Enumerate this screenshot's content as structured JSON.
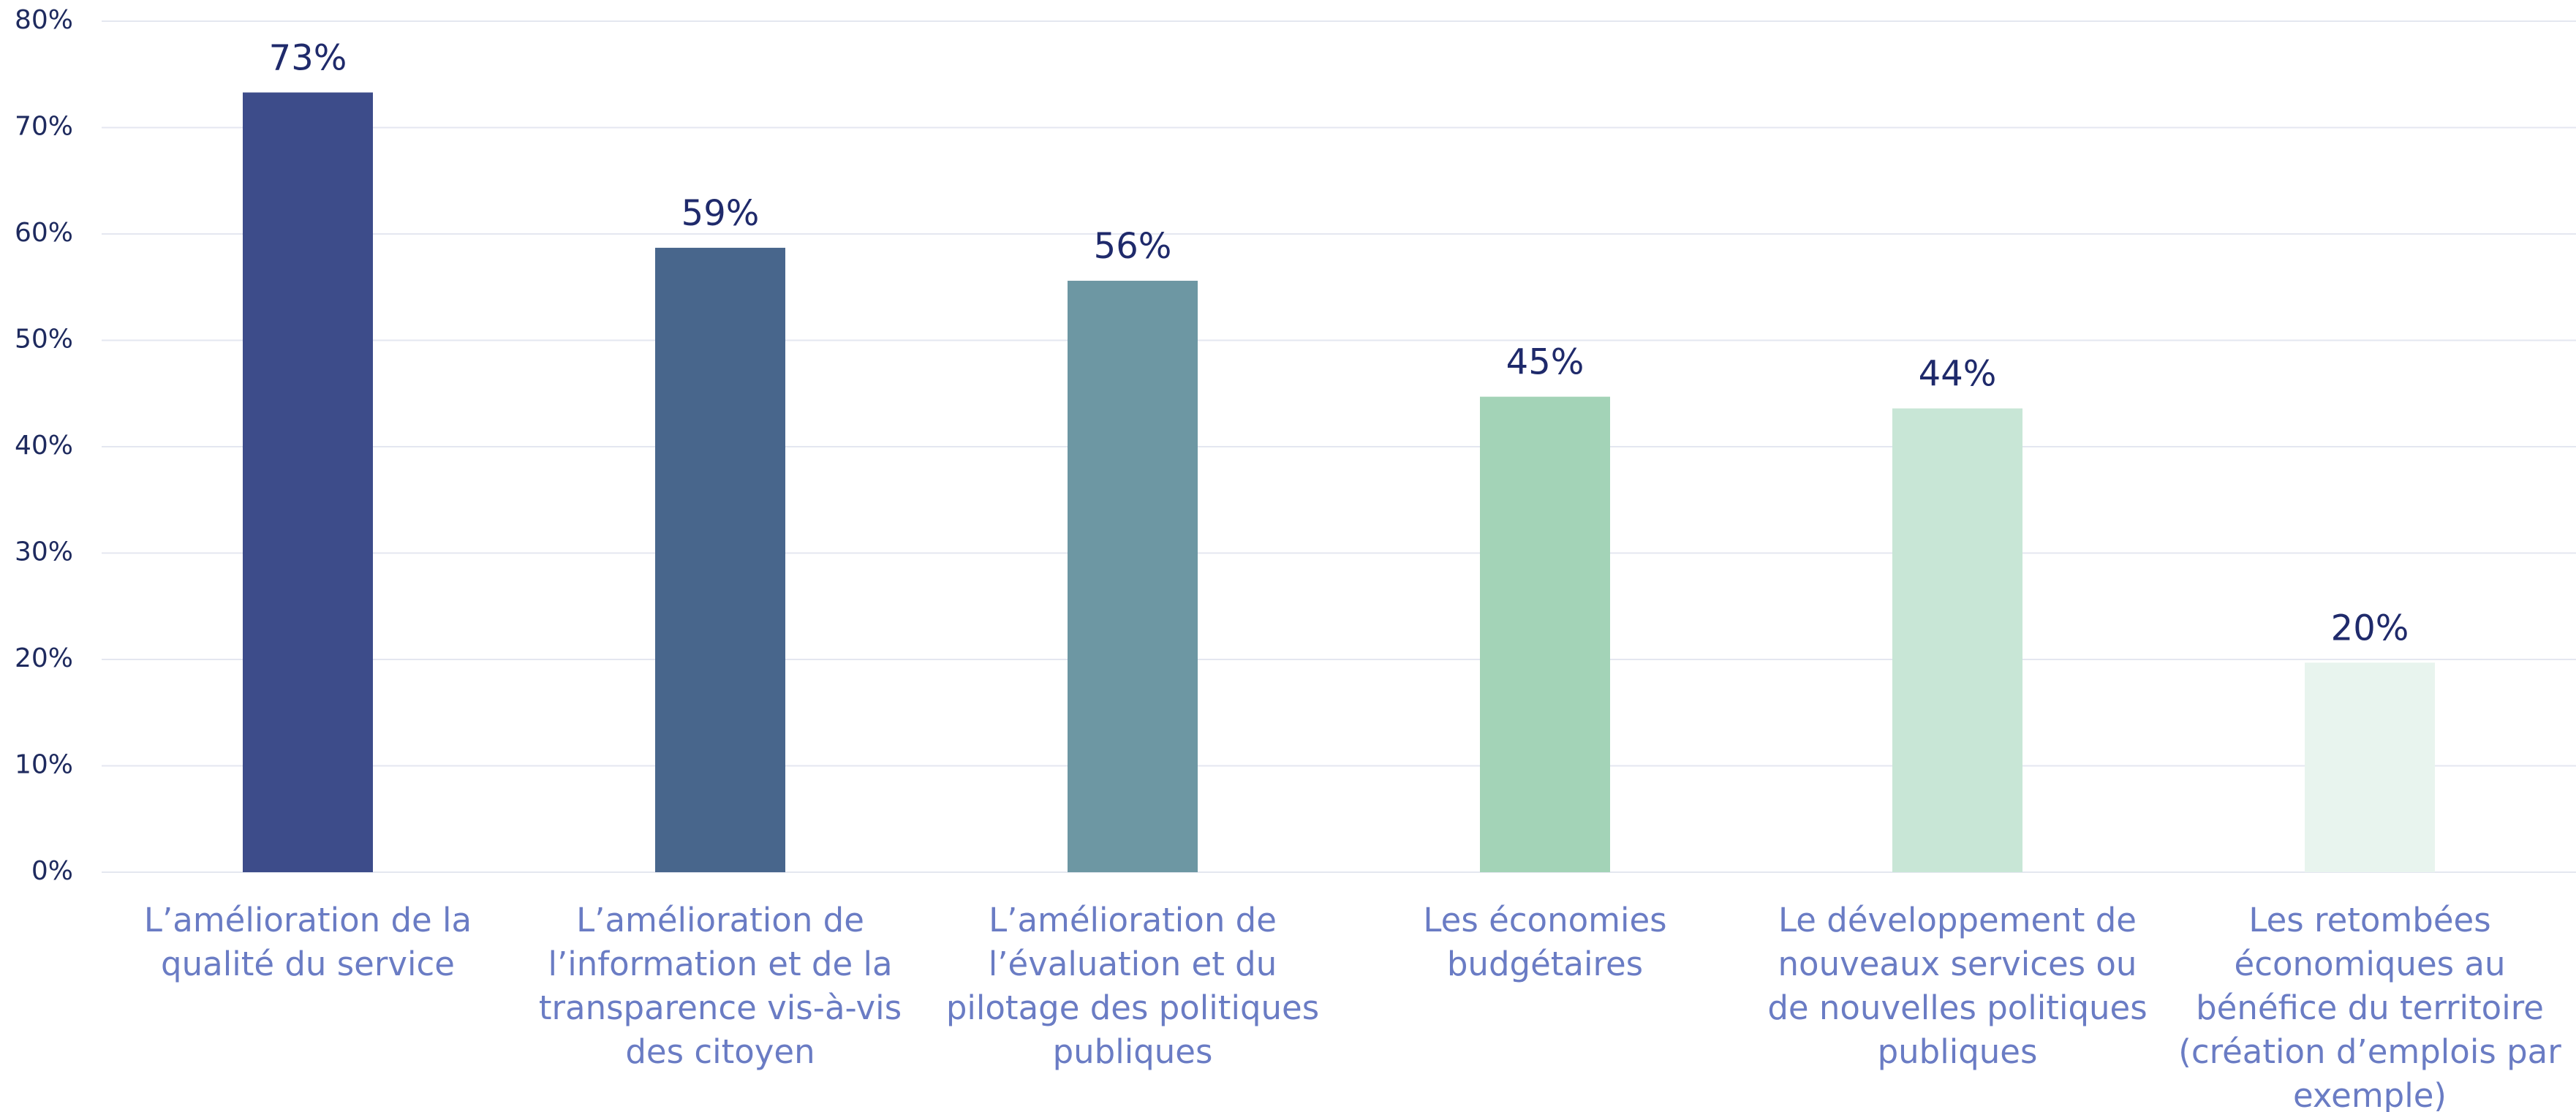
{
  "chart_data": {
    "type": "bar",
    "categories": [
      "L’amélioration de la qualité du service",
      "L’amélioration de l’information et de la transparence vis-à-vis des citoyen",
      "L’amélioration de l’évaluation et du pilotage des politiques publiques",
      "Les économies budgétaires",
      "Le développement de nouveaux services ou de nouvelles politiques publiques",
      "Les retombées économiques au bénéfice du territoire (création d’emplois par exemple)"
    ],
    "values": [
      73.3,
      58.7,
      55.6,
      44.7,
      43.6,
      19.7
    ],
    "value_labels": [
      "73%",
      "59%",
      "56%",
      "45%",
      "44%",
      "20%"
    ],
    "colors": [
      "#3d4c8a",
      "#48668c",
      "#6d97a3",
      "#a3d3b7",
      "#c8e6d6",
      "#e8f4ee"
    ],
    "ylim": [
      0,
      80
    ],
    "yticks": [
      {
        "value": 0,
        "label": "0%"
      },
      {
        "value": 10,
        "label": "10%"
      },
      {
        "value": 20,
        "label": "20%"
      },
      {
        "value": 30,
        "label": "30%"
      },
      {
        "value": 40,
        "label": "40%"
      },
      {
        "value": 50,
        "label": "50%"
      },
      {
        "value": 60,
        "label": "60%"
      },
      {
        "value": 70,
        "label": "70%"
      },
      {
        "value": 80,
        "label": "80%"
      }
    ],
    "grid": true
  }
}
